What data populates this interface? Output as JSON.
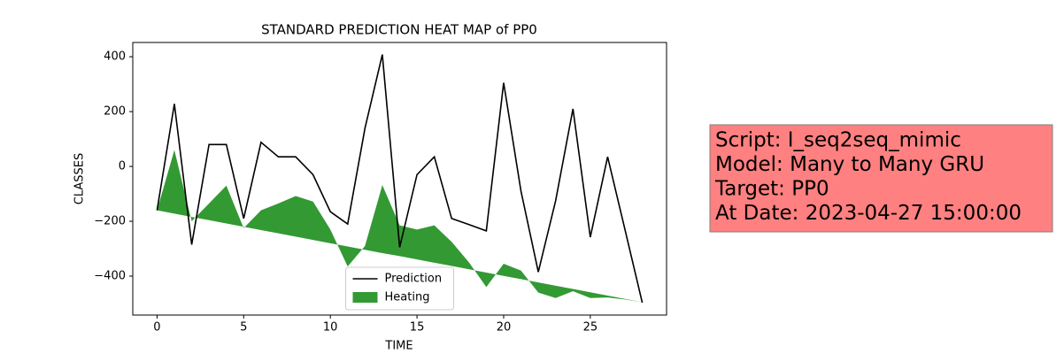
{
  "chart_data": {
    "type": "line",
    "title": "STANDARD PREDICTION HEAT MAP of PP0",
    "x_label": "TIME",
    "y_label": "CLASSES",
    "x": [
      0,
      1,
      2,
      3,
      4,
      5,
      6,
      7,
      8,
      9,
      10,
      11,
      12,
      13,
      14,
      15,
      16,
      17,
      18,
      19,
      20,
      21,
      22,
      23,
      24,
      25,
      26,
      27,
      28
    ],
    "series": [
      {
        "name": "Prediction",
        "color": "#000000",
        "type": "line",
        "values": [
          -160,
          228,
          -285,
          80,
          80,
          -190,
          88,
          35,
          35,
          -30,
          -165,
          -210,
          140,
          408,
          -295,
          -30,
          35,
          -190,
          -212,
          -235,
          305,
          -90,
          -385,
          -125,
          210,
          -258,
          35,
          -230,
          -497
        ]
      },
      {
        "name": "Heating",
        "color": "#008000",
        "alpha": 0.8,
        "type": "area",
        "values": [
          -160,
          60,
          -200,
          -135,
          -70,
          -225,
          -160,
          -135,
          -108,
          -128,
          -230,
          -365,
          -290,
          -68,
          -215,
          -230,
          -215,
          -275,
          -350,
          -440,
          -355,
          -380,
          -460,
          -480,
          -455,
          -480,
          -478,
          -485,
          -495
        ],
        "baseline": [
          -160,
          -172,
          -184,
          -196,
          -208,
          -220,
          -232,
          -244,
          -256,
          -268,
          -280,
          -292,
          -304,
          -316,
          -327,
          -339,
          -351,
          -363,
          -375,
          -387,
          -399,
          -411,
          -423,
          -435,
          -447,
          -459,
          -471,
          -483,
          -495
        ]
      }
    ],
    "xlim": [
      -1.4,
      29.4
    ],
    "ylim": [
      -542,
      452
    ],
    "xticks": [
      0,
      5,
      10,
      15,
      20,
      25
    ],
    "yticks": [
      {
        "value": -400,
        "label": "−400"
      },
      {
        "value": -200,
        "label": "−200"
      },
      0,
      200,
      400
    ],
    "grid": false,
    "legend_position": "lower center",
    "annotation": {
      "lines": [
        "Script: I_seq2seq_mimic",
        "Model: Many to Many GRU",
        "Target: PP0",
        "At Date: 2023-04-27 15:00:00"
      ],
      "background": "#ff8080",
      "border": "#808080"
    }
  }
}
